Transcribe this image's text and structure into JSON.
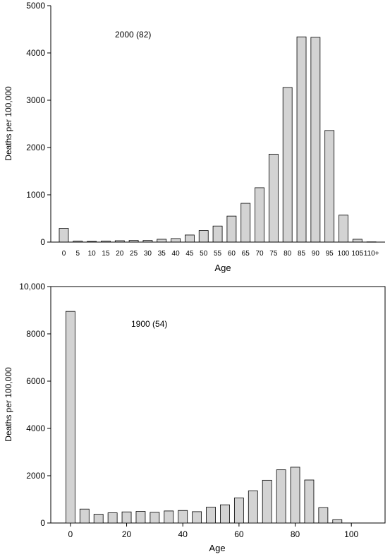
{
  "chart_data": [
    {
      "type": "bar",
      "annotation": "2000 (82)",
      "xlabel": "Age",
      "ylabel": "Deaths per 100,000",
      "ylim": [
        0,
        5000
      ],
      "yticks": [
        "0",
        "1000",
        "2000",
        "3000",
        "4000",
        "5000"
      ],
      "yticks_values": [
        0,
        1000,
        2000,
        3000,
        4000,
        5000
      ],
      "categories": [
        "0",
        "5",
        "10",
        "15",
        "20",
        "25",
        "30",
        "35",
        "40",
        "45",
        "50",
        "55",
        "60",
        "65",
        "70",
        "75",
        "80",
        "85",
        "90",
        "95",
        "100",
        "105",
        "110+"
      ],
      "values": [
        290,
        20,
        15,
        20,
        30,
        35,
        35,
        60,
        75,
        150,
        245,
        340,
        550,
        820,
        1150,
        1860,
        3270,
        4340,
        4330,
        2360,
        570,
        60,
        5
      ],
      "grid": false
    },
    {
      "type": "bar",
      "annotation": "1900 (54)",
      "xlabel": "Age",
      "ylabel": "Deaths per 100,000",
      "ylim": [
        0,
        10000
      ],
      "xlim": [
        -7,
        112
      ],
      "yticks": [
        "0",
        "2000",
        "4000",
        "6000",
        "8000",
        "10,000"
      ],
      "yticks_values": [
        0,
        2000,
        4000,
        6000,
        8000,
        10000
      ],
      "xticks": [
        "0",
        "20",
        "40",
        "60",
        "80",
        "100"
      ],
      "xticks_values": [
        0,
        20,
        40,
        60,
        80,
        100
      ],
      "x": [
        0,
        5,
        10,
        15,
        20,
        25,
        30,
        35,
        40,
        45,
        50,
        55,
        60,
        65,
        70,
        75,
        80,
        85,
        90,
        95
      ],
      "values": [
        8950,
        590,
        370,
        430,
        470,
        490,
        450,
        510,
        530,
        480,
        670,
        770,
        1060,
        1360,
        1810,
        2250,
        2360,
        1820,
        650,
        140
      ],
      "grid": false
    }
  ]
}
